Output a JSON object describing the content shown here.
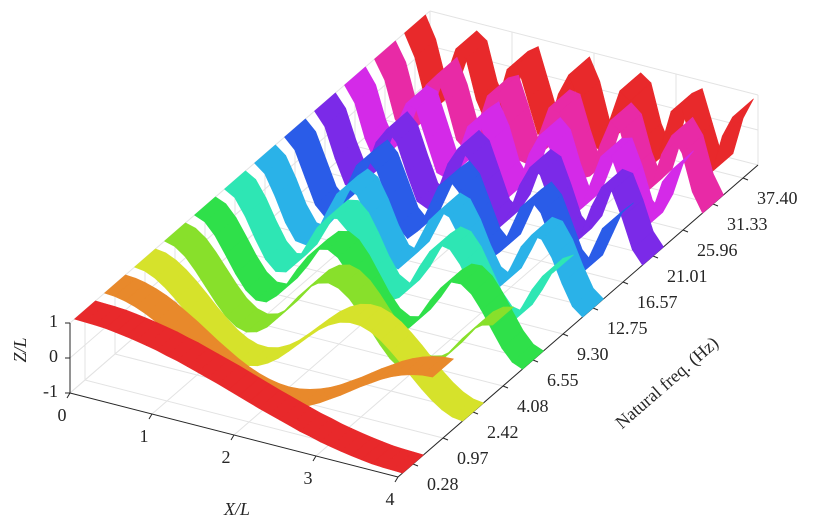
{
  "chart_data": {
    "type": "ribbon",
    "xlabel": "X/L",
    "ylabel": "Natural freq. (Hz)",
    "zlabel": "Z/L",
    "xlim": [
      0,
      4
    ],
    "xticks": [
      0,
      1,
      2,
      3,
      4
    ],
    "zlim": [
      -1,
      1
    ],
    "zticks": [
      -1,
      0,
      1
    ],
    "grid": true,
    "x": [
      0,
      0.125,
      0.25,
      0.375,
      0.5,
      0.625,
      0.75,
      0.875,
      1,
      1.125,
      1.25,
      1.375,
      1.5,
      1.625,
      1.75,
      1.875,
      2,
      2.125,
      2.25,
      2.375,
      2.5,
      2.625,
      2.75,
      2.875,
      3,
      3.125,
      3.25,
      3.375,
      3.5,
      3.625,
      3.75,
      3.875,
      4
    ],
    "series": [
      {
        "name": "0.28",
        "color": "#e8292b",
        "values": [
          1,
          0.99,
          0.98,
          0.96,
          0.92,
          0.88,
          0.83,
          0.77,
          0.71,
          0.63,
          0.56,
          0.47,
          0.38,
          0.29,
          0.2,
          0.1,
          0,
          -0.1,
          -0.2,
          -0.29,
          -0.38,
          -0.47,
          -0.56,
          -0.63,
          -0.71,
          -0.77,
          -0.83,
          -0.88,
          -0.92,
          -0.96,
          -0.98,
          -0.99,
          -1
        ]
      },
      {
        "name": "0.97",
        "color": "#e8892b",
        "values": [
          1,
          0.98,
          0.92,
          0.83,
          0.71,
          0.56,
          0.38,
          0.2,
          0,
          -0.2,
          -0.38,
          -0.56,
          -0.71,
          -0.83,
          -0.92,
          -0.98,
          -1,
          -0.98,
          -0.92,
          -0.83,
          -0.71,
          -0.56,
          -0.38,
          -0.2,
          0,
          0.2,
          0.38,
          0.56,
          0.71,
          0.83,
          0.92,
          0.98,
          1
        ]
      },
      {
        "name": "2.42",
        "color": "#d6e22b",
        "values": [
          1,
          0.96,
          0.83,
          0.63,
          0.38,
          0.1,
          -0.2,
          -0.47,
          -0.71,
          -0.88,
          -0.98,
          -0.99,
          -0.92,
          -0.77,
          -0.56,
          -0.29,
          0,
          0.29,
          0.56,
          0.77,
          0.92,
          0.99,
          0.98,
          0.88,
          0.71,
          0.47,
          0.2,
          -0.1,
          -0.38,
          -0.63,
          -0.83,
          -0.96,
          -1
        ]
      },
      {
        "name": "4.08",
        "color": "#88e02b",
        "values": [
          1,
          0.92,
          0.71,
          0.38,
          0,
          -0.38,
          -0.71,
          -0.92,
          -1,
          -0.92,
          -0.71,
          -0.38,
          0,
          0.38,
          0.71,
          0.92,
          1,
          0.92,
          0.71,
          0.38,
          0,
          -0.38,
          -0.71,
          -0.92,
          -1,
          -0.92,
          -0.71,
          -0.38,
          0,
          0.38,
          0.71,
          0.92,
          1
        ]
      },
      {
        "name": "6.55",
        "color": "#2fe04a",
        "values": [
          1,
          0.88,
          0.56,
          0.1,
          -0.38,
          -0.77,
          -0.98,
          -0.96,
          -0.71,
          -0.29,
          0.2,
          0.63,
          0.92,
          0.99,
          0.83,
          0.47,
          0,
          -0.47,
          -0.83,
          -0.99,
          -0.92,
          -0.63,
          -0.2,
          0.29,
          0.71,
          0.96,
          0.98,
          0.77,
          0.38,
          -0.1,
          -0.56,
          -0.88,
          -1
        ]
      },
      {
        "name": "9.30",
        "color": "#2ee6b4",
        "values": [
          1,
          0.83,
          0.38,
          -0.2,
          -0.71,
          -0.98,
          -0.92,
          -0.56,
          0,
          0.56,
          0.92,
          0.98,
          0.71,
          0.2,
          -0.38,
          -0.83,
          -1,
          -0.83,
          -0.38,
          0.2,
          0.71,
          0.98,
          0.92,
          0.56,
          0,
          -0.56,
          -0.92,
          -0.98,
          -0.71,
          -0.2,
          0.38,
          0.83,
          1
        ]
      },
      {
        "name": "12.75",
        "color": "#2ab2e8",
        "values": [
          1,
          0.77,
          0.2,
          -0.47,
          -0.92,
          -0.96,
          -0.56,
          0.1,
          0.71,
          0.99,
          0.83,
          0.29,
          -0.38,
          -0.88,
          -0.98,
          -0.63,
          0,
          0.63,
          0.98,
          0.88,
          0.38,
          -0.29,
          -0.83,
          -0.99,
          -0.71,
          -0.1,
          0.56,
          0.96,
          0.92,
          0.47,
          -0.2,
          -0.77,
          -1
        ]
      },
      {
        "name": "16.57",
        "color": "#2a5ce8",
        "values": [
          1,
          0.71,
          0,
          -0.71,
          -1,
          -0.71,
          0,
          0.71,
          1,
          0.71,
          0,
          -0.71,
          -1,
          -0.71,
          0,
          0.71,
          1,
          0.71,
          0,
          -0.71,
          -1,
          -0.71,
          0,
          0.71,
          1,
          0.71,
          0,
          -0.71,
          -1,
          -0.71,
          0,
          0.71,
          1
        ]
      },
      {
        "name": "21.01",
        "color": "#7b2ae8",
        "values": [
          1,
          0.63,
          -0.2,
          -0.88,
          -0.92,
          -0.29,
          0.56,
          0.99,
          0.71,
          -0.1,
          -0.83,
          -0.96,
          -0.38,
          0.47,
          0.98,
          0.77,
          0,
          -0.77,
          -0.98,
          -0.47,
          0.38,
          0.96,
          0.83,
          0.1,
          -0.71,
          -0.99,
          -0.56,
          0.29,
          0.92,
          0.88,
          0.2,
          -0.63,
          -1
        ]
      },
      {
        "name": "25.96",
        "color": "#d42ae8",
        "values": [
          1,
          0.56,
          -0.38,
          -0.98,
          -0.71,
          0.2,
          0.92,
          0.83,
          0,
          -0.83,
          -0.92,
          -0.2,
          0.71,
          0.98,
          0.38,
          -0.56,
          -1,
          -0.56,
          0.38,
          0.98,
          0.71,
          -0.2,
          -0.92,
          -0.83,
          0,
          0.83,
          0.92,
          0.2,
          -0.71,
          -0.98,
          -0.38,
          0.56,
          1
        ]
      },
      {
        "name": "31.33",
        "color": "#e82aa6",
        "values": [
          1,
          0.47,
          -0.56,
          -0.99,
          -0.38,
          0.63,
          0.98,
          0.29,
          -0.71,
          -0.96,
          -0.2,
          0.77,
          0.92,
          0.1,
          -0.83,
          -0.88,
          0,
          0.88,
          0.83,
          -0.1,
          -0.92,
          -0.77,
          0.2,
          0.96,
          0.71,
          -0.29,
          -0.98,
          -0.63,
          0.38,
          0.99,
          0.56,
          -0.47,
          -1
        ]
      },
      {
        "name": "37.40",
        "color": "#e8292b",
        "values": [
          1,
          0.38,
          -0.71,
          -0.92,
          0,
          0.92,
          0.71,
          -0.38,
          -1,
          -0.38,
          0.71,
          0.92,
          0,
          -0.92,
          -0.71,
          0.38,
          1,
          0.38,
          -0.71,
          -0.92,
          0,
          0.92,
          0.71,
          -0.38,
          -1,
          -0.38,
          0.71,
          0.92,
          0,
          -0.92,
          -0.71,
          0.38,
          1
        ]
      }
    ]
  }
}
